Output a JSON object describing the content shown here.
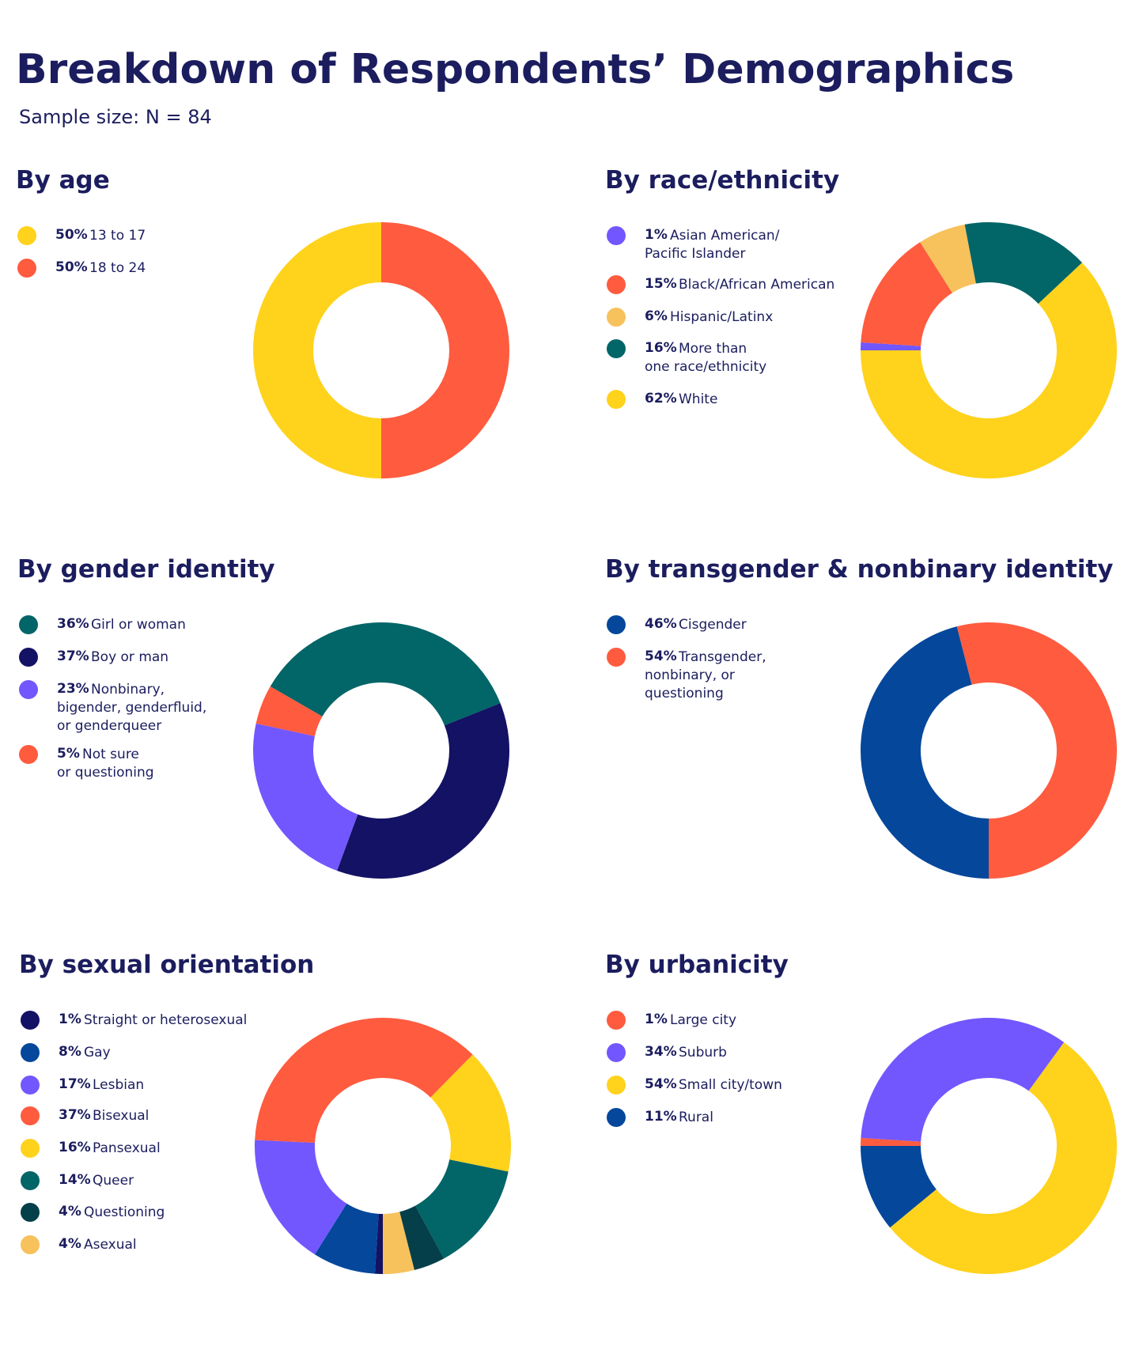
{
  "title": "Breakdown of Respondents’ Demographics",
  "subtitle": "Sample size: N = 84",
  "chart_data": [
    {
      "type": "pie",
      "title": "By age",
      "donut": true,
      "slices": [
        {
          "label": "13 to 17",
          "pct_label": "50%",
          "value": 50,
          "color": "#ffd21c"
        },
        {
          "label": "18 to 24",
          "pct_label": "50%",
          "value": 50,
          "color": "#ff5b3f"
        }
      ]
    },
    {
      "type": "pie",
      "title": "By race/ethnicity",
      "donut": true,
      "slices": [
        {
          "label": "Asian American/\nPacific Islander",
          "pct_label": "1%",
          "value": 1,
          "color": "#7257ff"
        },
        {
          "label": "Black/African American",
          "pct_label": "15%",
          "value": 15,
          "color": "#ff5b3f"
        },
        {
          "label": "Hispanic/Latinx",
          "pct_label": "6%",
          "value": 6,
          "color": "#f7c15c"
        },
        {
          "label": "More than\none race/ethnicity",
          "pct_label": "16%",
          "value": 16,
          "color": "#026567"
        },
        {
          "label": "White",
          "pct_label": "62%",
          "value": 62,
          "color": "#ffd21c"
        }
      ]
    },
    {
      "type": "pie",
      "title": "By gender identity",
      "donut": true,
      "slices": [
        {
          "label": "Girl or woman",
          "pct_label": "36%",
          "value": 36,
          "color": "#026567"
        },
        {
          "label": "Boy or man",
          "pct_label": "37%",
          "value": 37,
          "color": "#131264"
        },
        {
          "label": "Nonbinary,\nbigender, genderfluid,\nor genderqueer",
          "pct_label": "23%",
          "value": 23,
          "color": "#7257ff"
        },
        {
          "label": "Not sure\nor questioning",
          "pct_label": "5%",
          "value": 5,
          "color": "#ff5b3f"
        }
      ]
    },
    {
      "type": "pie",
      "title": "By transgender & nonbinary identity",
      "donut": true,
      "slices": [
        {
          "label": "Cisgender",
          "pct_label": "46%",
          "value": 46,
          "color": "#04479b"
        },
        {
          "label": "Transgender,\nnonbinary, or\nquestioning",
          "pct_label": "54%",
          "value": 54,
          "color": "#ff5b3f"
        }
      ]
    },
    {
      "type": "pie",
      "title": "By sexual orientation",
      "donut": true,
      "slices": [
        {
          "label": "Straight or heterosexual",
          "pct_label": "1%",
          "value": 1,
          "color": "#131264"
        },
        {
          "label": "Gay",
          "pct_label": "8%",
          "value": 8,
          "color": "#04479b"
        },
        {
          "label": "Lesbian",
          "pct_label": "17%",
          "value": 17,
          "color": "#7257ff"
        },
        {
          "label": "Bisexual",
          "pct_label": "37%",
          "value": 37,
          "color": "#ff5b3f"
        },
        {
          "label": "Pansexual",
          "pct_label": "16%",
          "value": 16,
          "color": "#ffd21c"
        },
        {
          "label": "Queer",
          "pct_label": "14%",
          "value": 14,
          "color": "#026567"
        },
        {
          "label": "Questioning",
          "pct_label": "4%",
          "value": 4,
          "color": "#05404a"
        },
        {
          "label": "Asexual",
          "pct_label": "4%",
          "value": 4,
          "color": "#f7c15c"
        }
      ]
    },
    {
      "type": "pie",
      "title": "By urbanicity",
      "donut": true,
      "slices": [
        {
          "label": "Large city",
          "pct_label": "1%",
          "value": 1,
          "color": "#ff5b3f"
        },
        {
          "label": "Suburb",
          "pct_label": "34%",
          "value": 34,
          "color": "#7257ff"
        },
        {
          "label": "Small city/town",
          "pct_label": "54%",
          "value": 54,
          "color": "#ffd21c"
        },
        {
          "label": "Rural",
          "pct_label": "11%",
          "value": 11,
          "color": "#04479b"
        }
      ]
    }
  ]
}
